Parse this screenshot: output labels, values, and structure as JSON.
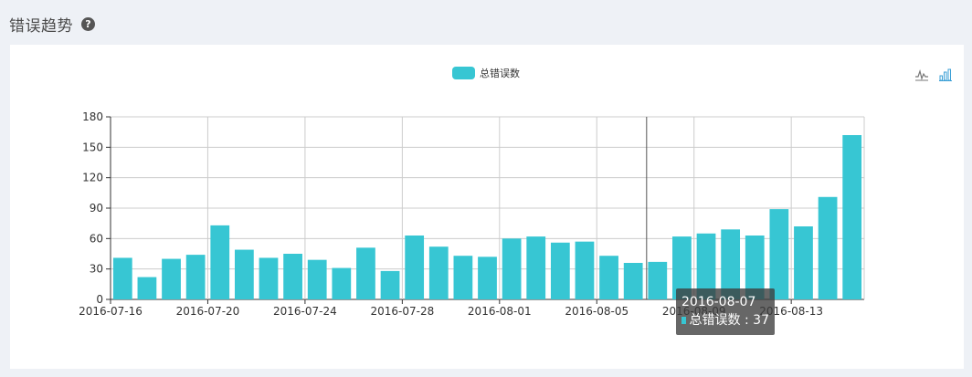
{
  "header": {
    "title": "错误趋势",
    "help_icon": "question-circle-icon"
  },
  "legend": {
    "label": "总错误数"
  },
  "toolbox": {
    "line_icon": "line-chart-icon",
    "bar_icon": "bar-chart-icon"
  },
  "tooltip": {
    "date": "2016-08-07",
    "series": "总错误数",
    "value": "37"
  },
  "colors": {
    "bar": "#37c6d3",
    "background": "#eef1f6",
    "panel": "#ffffff"
  },
  "chart_data": {
    "type": "bar",
    "categories": [
      "2016-07-16",
      "2016-07-17",
      "2016-07-18",
      "2016-07-19",
      "2016-07-20",
      "2016-07-21",
      "2016-07-22",
      "2016-07-23",
      "2016-07-24",
      "2016-07-25",
      "2016-07-26",
      "2016-07-27",
      "2016-07-28",
      "2016-07-29",
      "2016-07-30",
      "2016-07-31",
      "2016-08-01",
      "2016-08-02",
      "2016-08-03",
      "2016-08-04",
      "2016-08-05",
      "2016-08-06",
      "2016-08-07",
      "2016-08-08",
      "2016-08-09",
      "2016-08-10",
      "2016-08-11",
      "2016-08-12",
      "2016-08-13",
      "2016-08-14",
      "2016-08-15"
    ],
    "series": [
      {
        "name": "总错误数",
        "values": [
          41,
          22,
          40,
          44,
          73,
          49,
          41,
          45,
          39,
          31,
          51,
          28,
          63,
          52,
          43,
          42,
          60,
          62,
          56,
          57,
          43,
          36,
          37,
          62,
          65,
          69,
          63,
          89,
          72,
          101,
          162
        ]
      }
    ],
    "xticks": [
      "2016-07-16",
      "2016-07-20",
      "2016-07-24",
      "2016-07-28",
      "2016-08-01",
      "2016-08-05",
      "2016-08-09",
      "2016-08-13"
    ],
    "yticks": [
      0,
      30,
      60,
      90,
      120,
      150,
      180
    ],
    "ylim": [
      0,
      180
    ],
    "grid": true,
    "legend_position": "top-center",
    "highlight_category": "2016-08-07"
  }
}
